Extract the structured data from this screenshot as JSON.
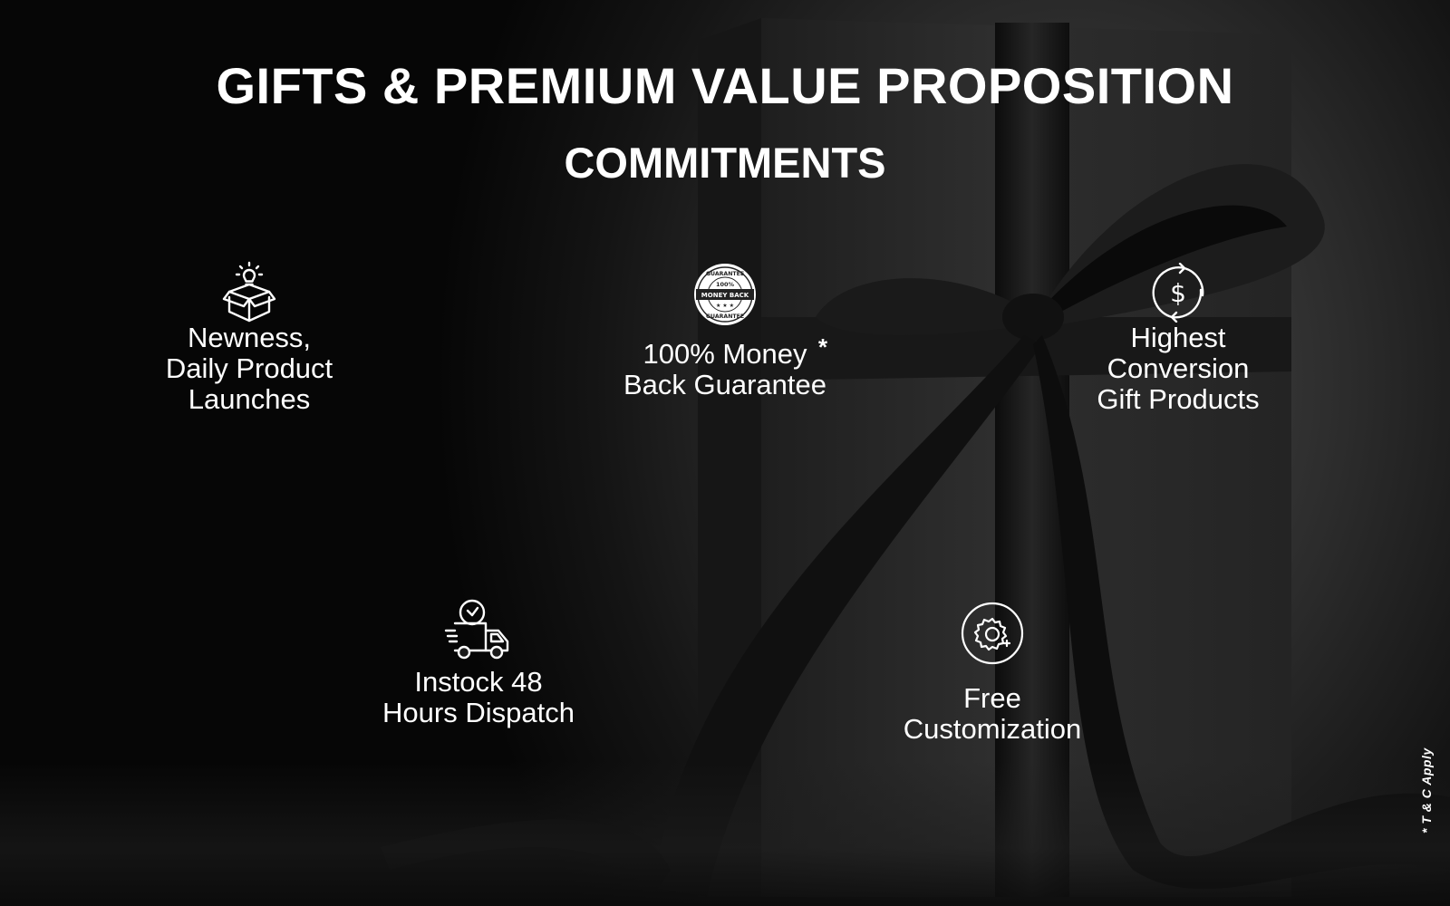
{
  "header": {
    "title": "GIFTS & PREMIUM VALUE PROPOSITION",
    "subtitle": "COMMITMENTS"
  },
  "features": [
    {
      "icon": "lightbulb-box-icon",
      "lines": [
        "Newness,",
        "Daily Product",
        "Launches"
      ]
    },
    {
      "icon": "money-back-guarantee-badge-icon",
      "badge_text": [
        "GUARANTEE",
        "100%",
        "MONEY BACK",
        "GUARANTEE"
      ],
      "lines": [
        "100% Money",
        "Back Guarantee"
      ],
      "asterisk": "*"
    },
    {
      "icon": "dollar-cycle-icon",
      "lines": [
        "Highest",
        "Conversion",
        "Gift Products"
      ]
    },
    {
      "icon": "delivery-truck-clock-icon",
      "lines": [
        "Instock 48",
        "Hours Dispatch"
      ]
    },
    {
      "icon": "gear-customization-icon",
      "lines": [
        "Free",
        "Customization"
      ]
    }
  ],
  "footnote": "* T & C Apply",
  "colors": {
    "text": "#ffffff",
    "background_dark": "#0b0b0b",
    "background_light": "#474747"
  }
}
